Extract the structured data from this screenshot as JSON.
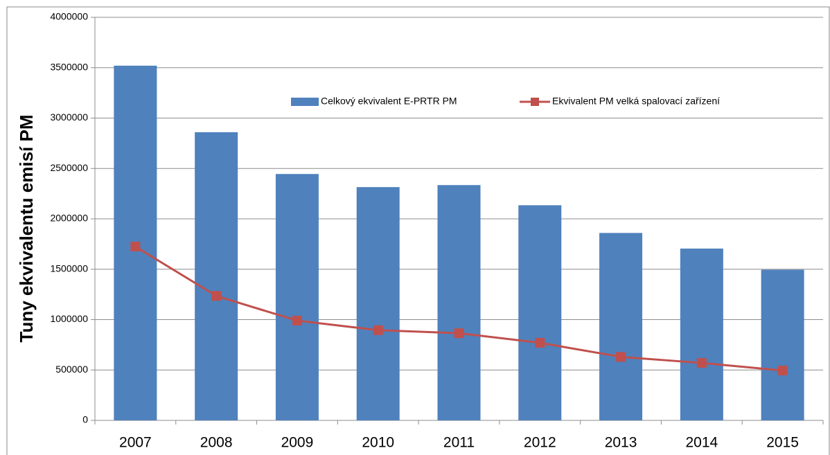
{
  "chart_data": {
    "type": "bar",
    "y_label": "Tuny ekvivalentu emisí PM",
    "categories": [
      "2007",
      "2008",
      "2009",
      "2010",
      "2011",
      "2012",
      "2013",
      "2014",
      "2015"
    ],
    "series": [
      {
        "name": "Celkový ekvivalent E-PRTR PM",
        "type": "bar",
        "color": "#4f81bd",
        "values": [
          3520000,
          2860000,
          2445000,
          2315000,
          2335000,
          2135000,
          1860000,
          1705000,
          1495000
        ]
      },
      {
        "name": "Ekvivalent PM velká spalovací zařízení",
        "type": "line",
        "color": "#c0504d",
        "values": [
          1725000,
          1235000,
          990000,
          895000,
          865000,
          770000,
          630000,
          570000,
          495000
        ]
      }
    ],
    "ylim": [
      0,
      4000000
    ],
    "yticks": [
      0,
      500000,
      1000000,
      1500000,
      2000000,
      2500000,
      3000000,
      3500000,
      4000000
    ],
    "grid": true
  }
}
